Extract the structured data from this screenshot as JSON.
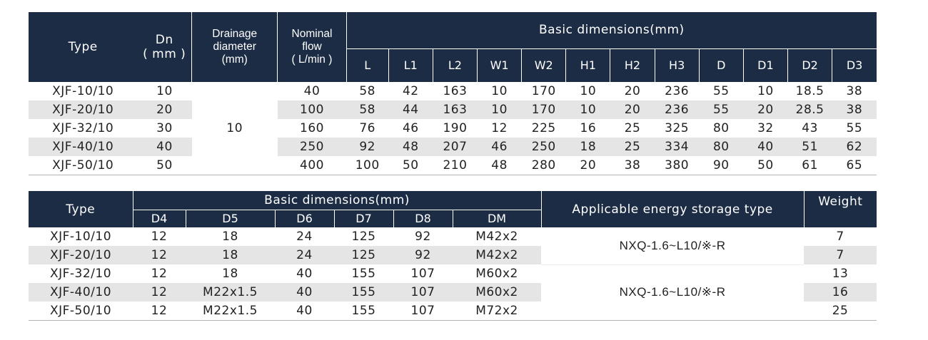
{
  "table1": {
    "headers": {
      "type": "Type",
      "dn": "Dn",
      "dn_unit": "( mm )",
      "drainage_1": "Drainage",
      "drainage_2": "diameter",
      "drainage_3": "(mm)",
      "nominal_1": "Nominal",
      "nominal_2": "flow",
      "nominal_3": "( L/min )",
      "basic": "Basic dimensions(mm)",
      "dims": [
        "L",
        "L1",
        "L2",
        "W1",
        "W2",
        "H1",
        "H2",
        "H3",
        "D",
        "D1",
        "D2",
        "D3"
      ]
    },
    "drainage_value": "10",
    "rows": [
      {
        "type": "XJF-10/10",
        "dn": "10",
        "flow": "40",
        "dims": [
          "58",
          "42",
          "163",
          "10",
          "170",
          "10",
          "20",
          "236",
          "55",
          "10",
          "18.5",
          "38"
        ]
      },
      {
        "type": "XJF-20/10",
        "dn": "20",
        "flow": "100",
        "dims": [
          "58",
          "44",
          "163",
          "10",
          "170",
          "10",
          "20",
          "236",
          "55",
          "20",
          "28.5",
          "38"
        ]
      },
      {
        "type": "XJF-32/10",
        "dn": "30",
        "flow": "160",
        "dims": [
          "76",
          "46",
          "190",
          "12",
          "225",
          "16",
          "25",
          "325",
          "80",
          "32",
          "43",
          "55"
        ]
      },
      {
        "type": "XJF-40/10",
        "dn": "40",
        "flow": "250",
        "dims": [
          "92",
          "48",
          "207",
          "46",
          "250",
          "18",
          "25",
          "334",
          "80",
          "40",
          "51",
          "62"
        ]
      },
      {
        "type": "XJF-50/10",
        "dn": "50",
        "flow": "400",
        "dims": [
          "100",
          "50",
          "210",
          "48",
          "280",
          "20",
          "38",
          "380",
          "90",
          "50",
          "61",
          "65"
        ]
      }
    ]
  },
  "table2": {
    "headers": {
      "type": "Type",
      "basic": "Basic dimensions(mm)",
      "dims": [
        "D4",
        "D5",
        "D6",
        "D7",
        "D8",
        "DM"
      ],
      "applicable": "Applicable energy storage type",
      "weight": "Weight"
    },
    "applicable_groups": [
      "NXQ-1.6~L10/※-R",
      "NXQ-1.6~L10/※-R"
    ],
    "rows": [
      {
        "type": "XJF-10/10",
        "dims": [
          "12",
          "18",
          "24",
          "125",
          "92",
          "M42x2"
        ],
        "weight": "7"
      },
      {
        "type": "XJF-20/10",
        "dims": [
          "12",
          "18",
          "24",
          "125",
          "92",
          "M42x2"
        ],
        "weight": "7"
      },
      {
        "type": "XJF-32/10",
        "dims": [
          "12",
          "18",
          "40",
          "155",
          "107",
          "M60x2"
        ],
        "weight": "13"
      },
      {
        "type": "XJF-40/10",
        "dims": [
          "12",
          "M22x1.5",
          "40",
          "155",
          "107",
          "M60x2"
        ],
        "weight": "16"
      },
      {
        "type": "XJF-50/10",
        "dims": [
          "12",
          "M22x1.5",
          "40",
          "155",
          "107",
          "M72x2"
        ],
        "weight": "25"
      }
    ]
  },
  "colors": {
    "header_bg": "#1c2c45",
    "header_text": "#ffffff",
    "stripe": "#e5e5e5",
    "rule": "#b5b5b5"
  }
}
